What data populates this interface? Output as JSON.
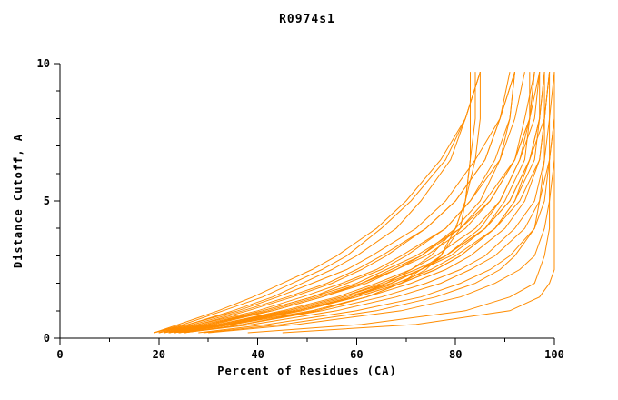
{
  "window": {
    "title": "R0974s1"
  },
  "chart_data": {
    "type": "line",
    "title": "R0974s1",
    "xlabel": "Percent of Residues (CA)",
    "ylabel": "Distance Cutoff, A",
    "xlim": [
      0,
      100
    ],
    "ylim": [
      0,
      10
    ],
    "x_ticks": [
      0,
      20,
      40,
      60,
      80,
      100
    ],
    "x_minor_step": 10,
    "y_ticks": [
      0,
      5,
      10
    ],
    "y_minor_step": 1,
    "grid": false,
    "legend": "none",
    "line_color": "#FF8C00",
    "axis_color": "#000000",
    "cutoffs": [
      0.2,
      0.5,
      1.0,
      1.5,
      2.0,
      2.5,
      3.0,
      4.0,
      5.0,
      6.5,
      8.0,
      9.7
    ],
    "series_percents": [
      [
        23,
        34,
        48,
        60,
        69,
        76,
        81,
        88,
        93,
        97,
        98,
        99
      ],
      [
        25,
        37,
        53,
        65,
        74,
        81,
        86,
        92,
        96,
        98,
        99,
        100
      ],
      [
        24,
        35,
        51,
        62,
        71,
        78,
        83,
        90,
        94,
        97,
        98,
        99
      ],
      [
        22,
        32,
        46,
        57,
        65,
        72,
        78,
        86,
        91,
        95,
        98,
        99
      ],
      [
        23,
        34,
        48,
        59,
        68,
        75,
        80,
        88,
        92,
        96,
        97,
        98
      ],
      [
        25,
        39,
        56,
        68,
        77,
        83,
        88,
        94,
        97,
        99,
        100,
        100
      ],
      [
        21,
        30,
        42,
        52,
        61,
        67,
        73,
        81,
        87,
        92,
        95,
        96
      ],
      [
        23,
        33,
        47,
        58,
        67,
        73,
        79,
        86,
        90,
        94,
        95,
        96
      ],
      [
        22,
        32,
        45,
        56,
        64,
        71,
        76,
        84,
        89,
        93,
        96,
        97
      ],
      [
        21,
        30,
        41,
        51,
        60,
        66,
        72,
        81,
        86,
        92,
        95,
        97
      ],
      [
        22,
        30,
        43,
        53,
        62,
        68,
        74,
        82,
        87,
        92,
        94,
        96
      ],
      [
        24,
        35,
        49,
        60,
        69,
        76,
        81,
        88,
        92,
        95,
        97,
        97
      ],
      [
        23,
        33,
        46,
        57,
        66,
        73,
        78,
        86,
        91,
        95,
        97,
        98
      ],
      [
        21,
        28,
        40,
        49,
        57,
        64,
        69,
        78,
        83,
        89,
        92,
        94
      ],
      [
        20,
        27,
        37,
        46,
        54,
        60,
        65,
        74,
        80,
        86,
        89,
        92
      ],
      [
        20,
        26,
        36,
        44,
        51,
        58,
        63,
        72,
        78,
        84,
        89,
        92
      ],
      [
        21,
        29,
        41,
        51,
        58,
        65,
        70,
        78,
        83,
        88,
        91,
        92
      ],
      [
        22,
        31,
        43,
        53,
        61,
        68,
        73,
        80,
        85,
        89,
        91,
        92
      ],
      [
        24,
        34,
        48,
        59,
        67,
        73,
        78,
        85,
        89,
        93,
        95,
        95
      ],
      [
        20,
        28,
        38,
        47,
        55,
        61,
        66,
        74,
        80,
        86,
        89,
        91
      ],
      [
        25,
        37,
        51,
        62,
        69,
        73,
        77,
        81,
        82,
        83,
        84,
        84
      ],
      [
        23,
        34,
        48,
        59,
        66,
        71,
        75,
        80,
        82,
        84,
        85,
        85
      ],
      [
        25,
        37,
        52,
        62,
        69,
        74,
        77,
        80,
        82,
        83,
        83,
        83
      ],
      [
        19,
        25,
        33,
        41,
        47,
        53,
        58,
        65,
        71,
        78,
        82,
        85
      ],
      [
        19,
        24,
        32,
        39,
        45,
        51,
        56,
        64,
        70,
        77,
        82,
        85
      ],
      [
        19,
        26,
        35,
        43,
        49,
        55,
        60,
        68,
        73,
        79,
        82,
        85
      ],
      [
        30,
        48,
        69,
        81,
        88,
        93,
        96,
        98,
        99,
        100,
        100,
        100
      ],
      [
        38,
        61,
        82,
        91,
        96,
        97,
        98,
        99,
        99,
        99,
        99,
        99
      ],
      [
        28,
        42,
        60,
        73,
        81,
        87,
        91,
        96,
        98,
        99,
        100,
        100
      ],
      [
        29,
        45,
        64,
        76,
        84,
        89,
        92,
        96,
        97,
        98,
        98,
        98
      ],
      [
        45,
        72,
        91,
        97,
        99,
        100,
        100,
        100,
        100,
        100,
        100,
        100
      ]
    ]
  }
}
